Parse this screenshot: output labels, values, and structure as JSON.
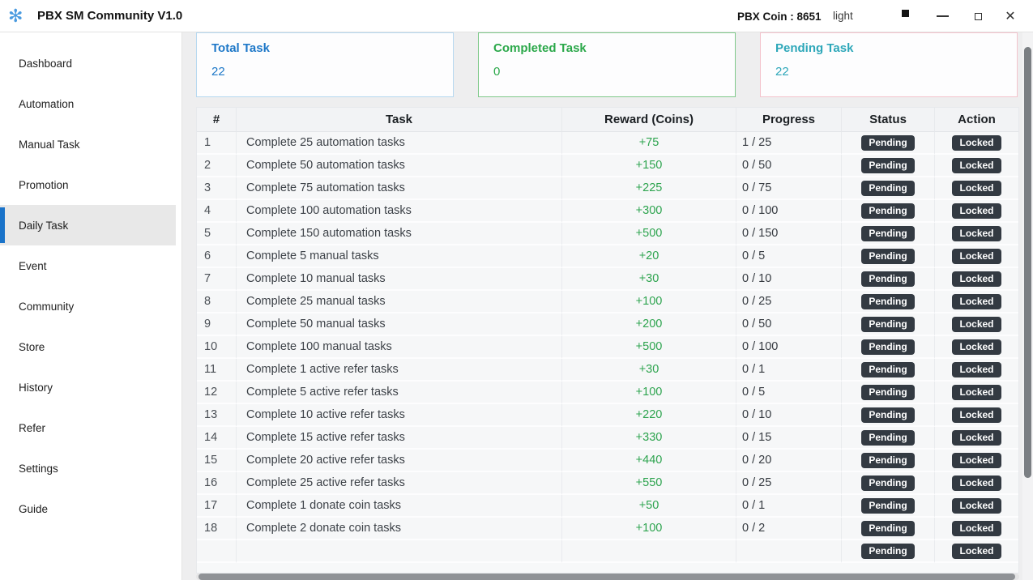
{
  "titlebar": {
    "app_title": "PBX SM Community V1.0",
    "coin_label": "PBX Coin : 8651",
    "theme_label": "light"
  },
  "sidebar": {
    "items": [
      {
        "label": "Dashboard",
        "active": false
      },
      {
        "label": "Automation",
        "active": false
      },
      {
        "label": "Manual Task",
        "active": false
      },
      {
        "label": "Promotion",
        "active": false
      },
      {
        "label": "Daily Task",
        "active": true
      },
      {
        "label": "Event",
        "active": false
      },
      {
        "label": "Community",
        "active": false
      },
      {
        "label": "Store",
        "active": false
      },
      {
        "label": "History",
        "active": false
      },
      {
        "label": "Refer",
        "active": false
      },
      {
        "label": "Settings",
        "active": false
      },
      {
        "label": "Guide",
        "active": false
      }
    ]
  },
  "cards": [
    {
      "title": "Total Task",
      "value": "22",
      "accent_color": "#1e78c8",
      "border_color": "#b6d8f0"
    },
    {
      "title": "Completed Task",
      "value": "0",
      "accent_color": "#2ba84a",
      "border_color": "#7fc98a"
    },
    {
      "title": "Pending Task",
      "value": "22",
      "accent_color": "#2da7b9",
      "border_color": "#f3c3cc"
    }
  ],
  "table": {
    "headers": [
      "#",
      "Task",
      "Reward (Coins)",
      "Progress",
      "Status",
      "Action"
    ],
    "rows": [
      {
        "num": "1",
        "task": "Complete 25 automation tasks",
        "reward": "+75",
        "progress": "1 / 25",
        "status": "Pending",
        "action": "Locked"
      },
      {
        "num": "2",
        "task": "Complete 50 automation tasks",
        "reward": "+150",
        "progress": "0 / 50",
        "status": "Pending",
        "action": "Locked"
      },
      {
        "num": "3",
        "task": "Complete 75 automation tasks",
        "reward": "+225",
        "progress": "0 / 75",
        "status": "Pending",
        "action": "Locked"
      },
      {
        "num": "4",
        "task": "Complete 100 automation tasks",
        "reward": "+300",
        "progress": "0 / 100",
        "status": "Pending",
        "action": "Locked"
      },
      {
        "num": "5",
        "task": "Complete 150 automation tasks",
        "reward": "+500",
        "progress": "0 / 150",
        "status": "Pending",
        "action": "Locked"
      },
      {
        "num": "6",
        "task": "Complete 5 manual tasks",
        "reward": "+20",
        "progress": "0 / 5",
        "status": "Pending",
        "action": "Locked"
      },
      {
        "num": "7",
        "task": "Complete 10 manual tasks",
        "reward": "+30",
        "progress": "0 / 10",
        "status": "Pending",
        "action": "Locked"
      },
      {
        "num": "8",
        "task": "Complete 25 manual tasks",
        "reward": "+100",
        "progress": "0 / 25",
        "status": "Pending",
        "action": "Locked"
      },
      {
        "num": "9",
        "task": "Complete 50 manual tasks",
        "reward": "+200",
        "progress": "0 / 50",
        "status": "Pending",
        "action": "Locked"
      },
      {
        "num": "10",
        "task": "Complete 100 manual tasks",
        "reward": "+500",
        "progress": "0 / 100",
        "status": "Pending",
        "action": "Locked"
      },
      {
        "num": "11",
        "task": "Complete 1 active refer tasks",
        "reward": "+30",
        "progress": "0 / 1",
        "status": "Pending",
        "action": "Locked"
      },
      {
        "num": "12",
        "task": "Complete 5 active refer tasks",
        "reward": "+100",
        "progress": "0 / 5",
        "status": "Pending",
        "action": "Locked"
      },
      {
        "num": "13",
        "task": "Complete 10 active refer tasks",
        "reward": "+220",
        "progress": "0 / 10",
        "status": "Pending",
        "action": "Locked"
      },
      {
        "num": "14",
        "task": "Complete 15 active refer tasks",
        "reward": "+330",
        "progress": "0 / 15",
        "status": "Pending",
        "action": "Locked"
      },
      {
        "num": "15",
        "task": "Complete 20 active refer tasks",
        "reward": "+440",
        "progress": "0 / 20",
        "status": "Pending",
        "action": "Locked"
      },
      {
        "num": "16",
        "task": "Complete 25 active refer tasks",
        "reward": "+550",
        "progress": "0 / 25",
        "status": "Pending",
        "action": "Locked"
      },
      {
        "num": "17",
        "task": "Complete 1 donate coin tasks",
        "reward": "+50",
        "progress": "0 / 1",
        "status": "Pending",
        "action": "Locked"
      },
      {
        "num": "18",
        "task": "Complete 2 donate coin tasks",
        "reward": "+100",
        "progress": "0 / 2",
        "status": "Pending",
        "action": "Locked"
      }
    ],
    "partial_row": {
      "num": "",
      "task": "",
      "reward": "",
      "progress": "",
      "status": "Pending",
      "action": "Locked"
    }
  },
  "colors": {
    "reward_green": "#2ea44f",
    "badge_bg": "#333a42",
    "active_nav_bar": "#1a73c9",
    "logo_blue": "#4b9be0"
  },
  "icons": {
    "logo": "✻",
    "close": "✕"
  }
}
